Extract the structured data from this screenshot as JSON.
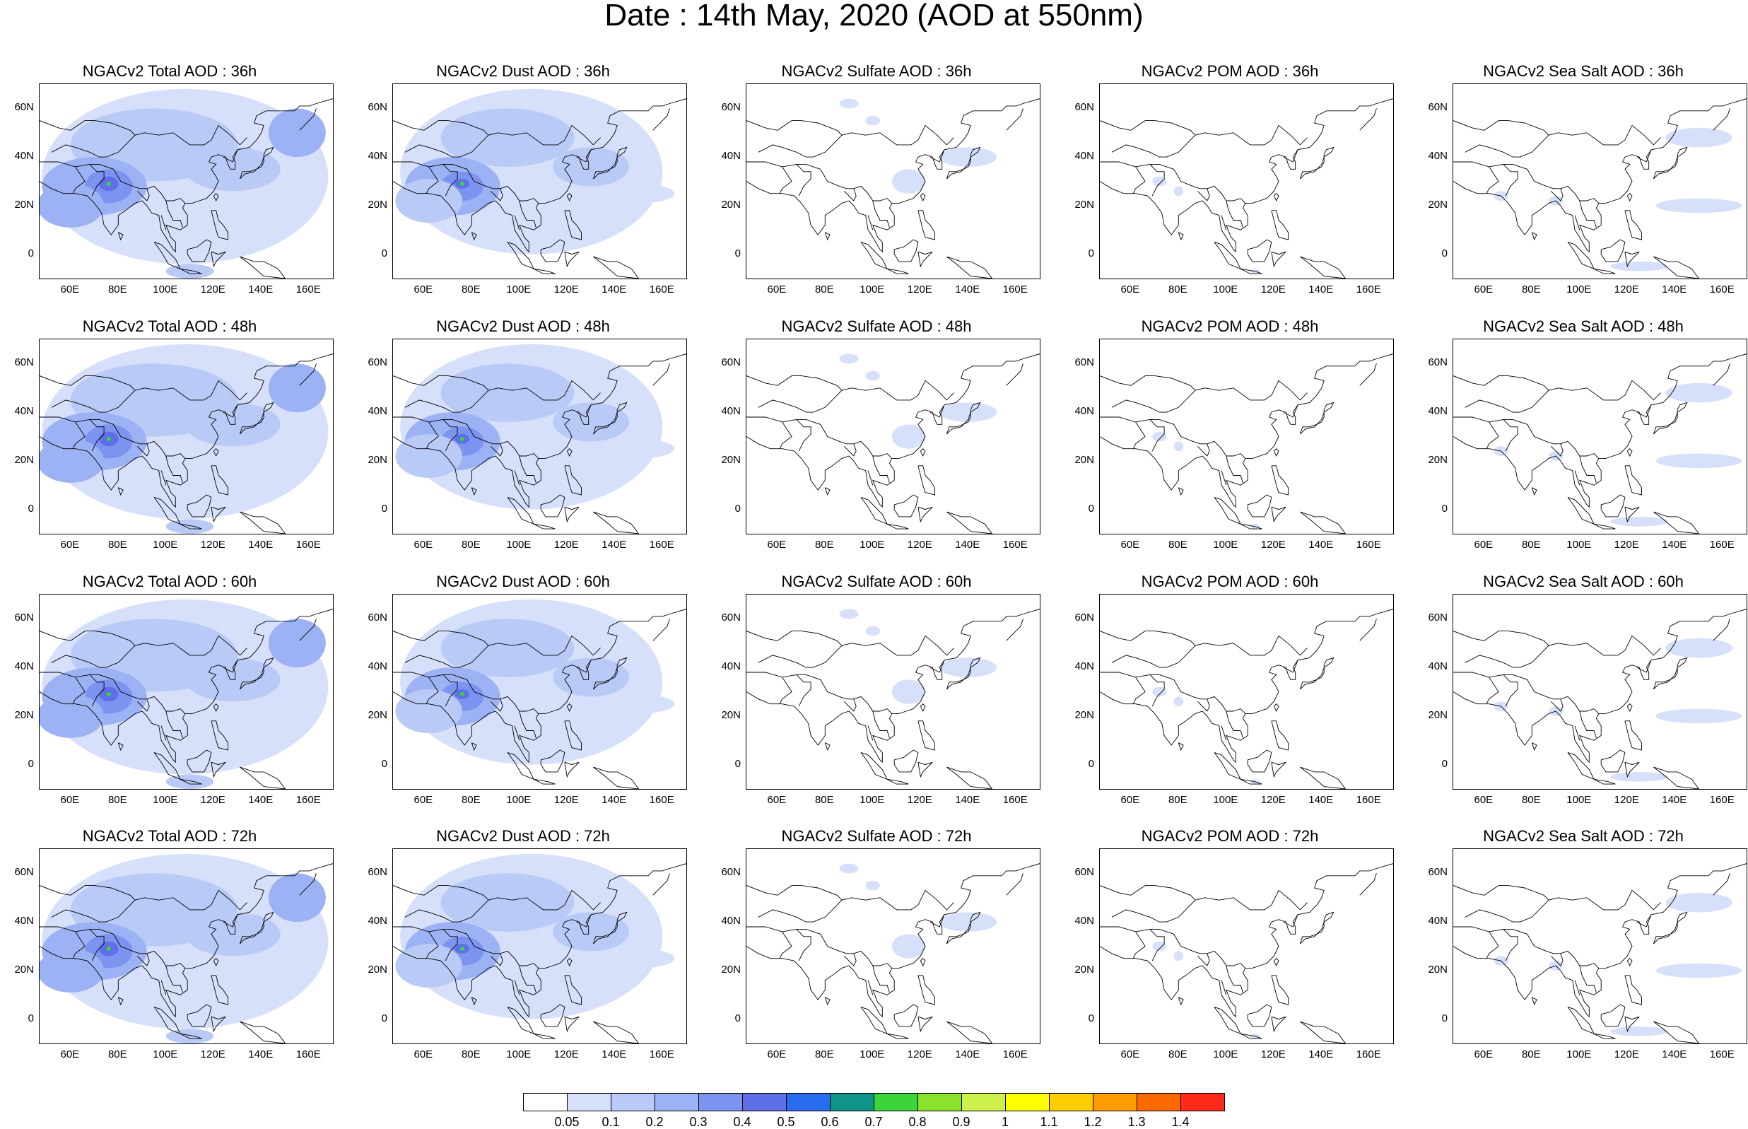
{
  "title": "Date : 14th May, 2020 (AOD at 550nm)",
  "lat_ticks": [
    "60N",
    "40N",
    "20N",
    "0"
  ],
  "lon_ticks": [
    "60E",
    "80E",
    "100E",
    "120E",
    "140E",
    "160E"
  ],
  "rows": [
    {
      "forecast_hour": "36h",
      "titles": [
        "NGACv2 Total AOD : 36h",
        "NGACv2 Dust AOD : 36h",
        "NGACv2 Sulfate AOD : 36h",
        "NGACv2 POM AOD : 36h",
        "NGACv2 Sea Salt AOD : 36h"
      ]
    },
    {
      "forecast_hour": "48h",
      "titles": [
        "NGACv2 Total AOD : 48h",
        "NGACv2 Dust AOD : 48h",
        "NGACv2 Sulfate AOD : 48h",
        "NGACv2 POM AOD : 48h",
        "NGACv2 Sea Salt AOD : 48h"
      ]
    },
    {
      "forecast_hour": "60h",
      "titles": [
        "NGACv2 Total AOD : 60h",
        "NGACv2 Dust AOD : 60h",
        "NGACv2 Sulfate AOD : 60h",
        "NGACv2 POM AOD : 60h",
        "NGACv2 Sea Salt AOD : 60h"
      ]
    },
    {
      "forecast_hour": "72h",
      "titles": [
        "NGACv2 Total AOD : 72h",
        "NGACv2 Dust AOD : 72h",
        "NGACv2 Sulfate AOD : 72h",
        "NGACv2 POM AOD : 72h",
        "NGACv2 Sea Salt  AOD : 72h"
      ]
    }
  ],
  "colorbar": {
    "labels": [
      "0.05",
      "0.1",
      "0.2",
      "0.3",
      "0.4",
      "0.5",
      "0.6",
      "0.7",
      "0.8",
      "0.9",
      "1",
      "1.1",
      "1.2",
      "1.3",
      "1.4"
    ],
    "colors": [
      "#ffffff",
      "#d6e0fb",
      "#b9caf6",
      "#9db2f4",
      "#7d93f0",
      "#5f6fe8",
      "#2a6cf0",
      "#0f9489",
      "#3bd43b",
      "#8ae22a",
      "#cdf04a",
      "#ffff00",
      "#ffcd00",
      "#ff9d00",
      "#ff6a00",
      "#ff2a1a"
    ]
  }
}
